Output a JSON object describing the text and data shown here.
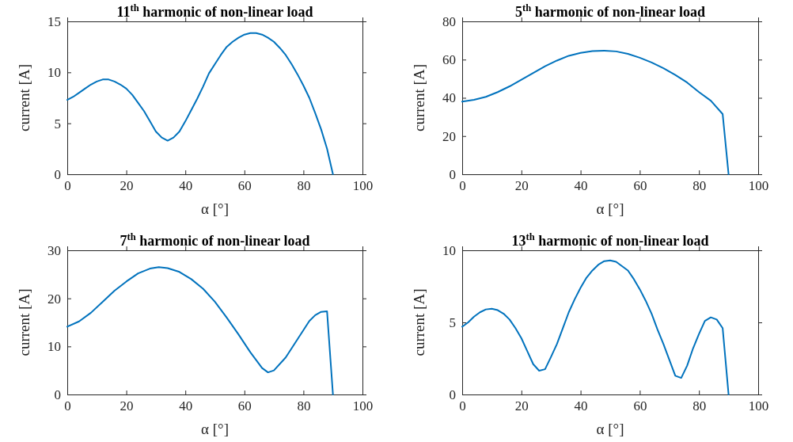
{
  "chart_data": [
    {
      "type": "line",
      "title": "11$^{th}$ harmonic of non-linear load",
      "xlabel": "α [°]",
      "ylabel": "current [A]",
      "xlim": [
        0,
        100
      ],
      "xticks": [
        0,
        20,
        40,
        60,
        80,
        100
      ],
      "ylim": [
        0,
        15
      ],
      "yticks": [
        0,
        5,
        10,
        15
      ],
      "marker": "none",
      "line_style": "solid",
      "series": [
        {
          "color": "#0072bd",
          "x": [
            0,
            2,
            4,
            6,
            8,
            10,
            12,
            14,
            16,
            18,
            20,
            22,
            24,
            26,
            28,
            30,
            32,
            34,
            36,
            38,
            40,
            42,
            44,
            46,
            48,
            50,
            52,
            54,
            56,
            58,
            60,
            62,
            64,
            66,
            68,
            70,
            72,
            74,
            76,
            78,
            80,
            82,
            84,
            86,
            88,
            90
          ],
          "values": [
            7.3,
            7.6,
            8.0,
            8.4,
            8.8,
            9.1,
            9.3,
            9.3,
            9.1,
            8.8,
            8.4,
            7.8,
            7.0,
            6.2,
            5.2,
            4.2,
            3.6,
            3.3,
            3.6,
            4.2,
            5.2,
            6.3,
            7.4,
            8.6,
            9.9,
            10.8,
            11.7,
            12.5,
            13.0,
            13.4,
            13.7,
            13.85,
            13.85,
            13.7,
            13.4,
            13.0,
            12.4,
            11.7,
            10.8,
            9.8,
            8.7,
            7.5,
            6.0,
            4.4,
            2.5,
            0
          ]
        }
      ]
    },
    {
      "type": "line",
      "title": "5$^{th}$ harmonic of non-linear load",
      "xlabel": "α [°]",
      "ylabel": "current [A]",
      "xlim": [
        0,
        100
      ],
      "xticks": [
        0,
        20,
        40,
        60,
        80,
        100
      ],
      "ylim": [
        0,
        80
      ],
      "yticks": [
        0,
        20,
        40,
        60,
        80
      ],
      "marker": "none",
      "line_style": "solid",
      "series": [
        {
          "color": "#0072bd",
          "x": [
            0,
            4,
            8,
            12,
            16,
            20,
            24,
            28,
            32,
            36,
            40,
            44,
            48,
            52,
            56,
            60,
            64,
            68,
            72,
            76,
            80,
            84,
            88,
            90
          ],
          "values": [
            38,
            39,
            40.5,
            43,
            46,
            49.5,
            53,
            56.5,
            59.5,
            62,
            63.5,
            64.5,
            64.7,
            64.3,
            63,
            61,
            58.5,
            55.5,
            52,
            48,
            43,
            38.5,
            31.5,
            0
          ]
        }
      ]
    },
    {
      "type": "line",
      "title": "7$^{th}$ harmonic of non-linear load",
      "xlabel": "α [°]",
      "ylabel": "current [A]",
      "xlim": [
        0,
        100
      ],
      "xticks": [
        0,
        20,
        40,
        60,
        80,
        100
      ],
      "ylim": [
        0,
        30
      ],
      "yticks": [
        0,
        10,
        20,
        30
      ],
      "marker": "none",
      "line_style": "solid",
      "series": [
        {
          "color": "#0072bd",
          "x": [
            0,
            4,
            8,
            12,
            16,
            20,
            24,
            28,
            31,
            34,
            38,
            42,
            46,
            50,
            54,
            58,
            62,
            66,
            68,
            70,
            74,
            78,
            82,
            84,
            86,
            88,
            90
          ],
          "values": [
            14.1,
            15.2,
            17.0,
            19.3,
            21.6,
            23.5,
            25.2,
            26.2,
            26.5,
            26.3,
            25.5,
            24.0,
            22.0,
            19.3,
            16.0,
            12.5,
            8.8,
            5.5,
            4.6,
            5.0,
            7.7,
            11.5,
            15.3,
            16.5,
            17.2,
            17.3,
            0
          ]
        }
      ]
    },
    {
      "type": "line",
      "title": "13$^{th}$ harmonic of non-linear load",
      "xlabel": "α [°]",
      "ylabel": "current [A]",
      "xlim": [
        0,
        100
      ],
      "xticks": [
        0,
        20,
        40,
        60,
        80,
        100
      ],
      "ylim": [
        0,
        10
      ],
      "yticks": [
        0,
        5,
        10
      ],
      "marker": "none",
      "line_style": "solid",
      "series": [
        {
          "color": "#0072bd",
          "x": [
            0,
            2,
            4,
            6,
            8,
            10,
            12,
            14,
            16,
            18,
            20,
            22,
            24,
            26,
            28,
            30,
            32,
            34,
            36,
            38,
            40,
            42,
            44,
            46,
            48,
            50,
            52,
            54,
            56,
            58,
            60,
            62,
            64,
            66,
            68,
            70,
            72,
            74,
            76,
            78,
            80,
            82,
            84,
            86,
            88,
            90
          ],
          "values": [
            4.7,
            5.0,
            5.4,
            5.7,
            5.9,
            5.95,
            5.85,
            5.6,
            5.2,
            4.6,
            3.9,
            3.0,
            2.1,
            1.65,
            1.75,
            2.6,
            3.5,
            4.6,
            5.7,
            6.6,
            7.4,
            8.1,
            8.6,
            9.0,
            9.25,
            9.3,
            9.2,
            8.9,
            8.6,
            8.0,
            7.3,
            6.5,
            5.6,
            4.5,
            3.5,
            2.4,
            1.3,
            1.15,
            2.0,
            3.2,
            4.2,
            5.1,
            5.35,
            5.2,
            4.6,
            0
          ]
        }
      ]
    }
  ]
}
